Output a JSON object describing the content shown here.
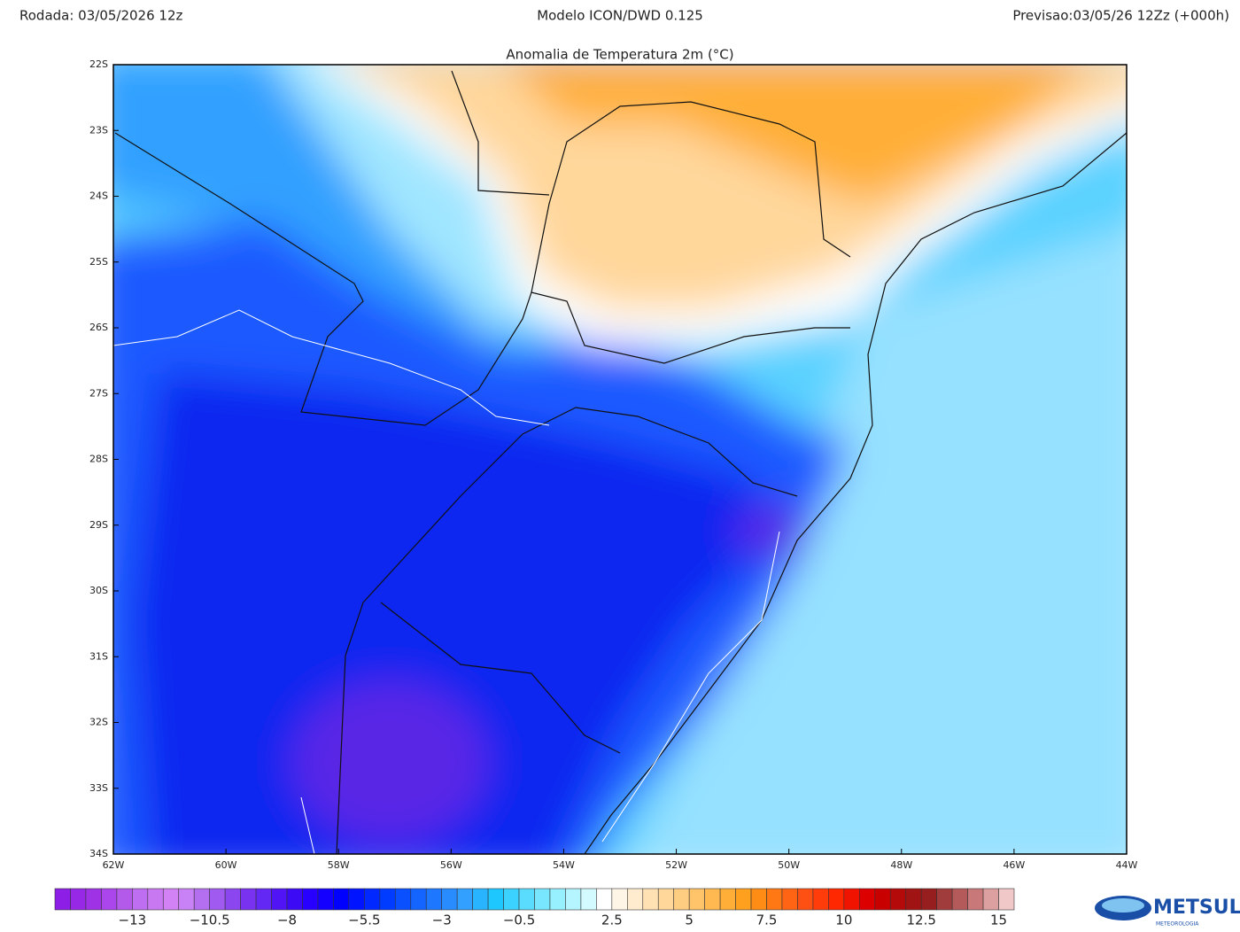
{
  "header": {
    "run": "Rodada: 03/05/2026 12z",
    "model": "Modelo ICON/DWD 0.125",
    "forecast": "Previsao:03/05/26 12Zz (+000h)"
  },
  "map": {
    "title": "Anomalia de Temperatura 2m (°C)",
    "lonlim": [
      -62,
      -44
    ],
    "latlim": [
      -22,
      -34
    ],
    "lonticks": [
      {
        "value": -62,
        "label": "62W"
      },
      {
        "value": -60,
        "label": "60W"
      },
      {
        "value": -58,
        "label": "58W"
      },
      {
        "value": -56,
        "label": "56W"
      },
      {
        "value": -54,
        "label": "54W"
      },
      {
        "value": -52,
        "label": "52W"
      },
      {
        "value": -50,
        "label": "50W"
      },
      {
        "value": -48,
        "label": "48W"
      },
      {
        "value": -46,
        "label": "46W"
      },
      {
        "value": -44,
        "label": "44W"
      }
    ],
    "latticks": [
      {
        "value": -22,
        "label": "22S"
      },
      {
        "value": -23,
        "label": "23S"
      },
      {
        "value": -24,
        "label": "24S"
      },
      {
        "value": -25,
        "label": "25S"
      },
      {
        "value": -26,
        "label": "26S"
      },
      {
        "value": -27,
        "label": "27S"
      },
      {
        "value": -28,
        "label": "28S"
      },
      {
        "value": -29,
        "label": "29S"
      },
      {
        "value": -30,
        "label": "30S"
      },
      {
        "value": -31,
        "label": "31S"
      },
      {
        "value": -32,
        "label": "32S"
      },
      {
        "value": -33,
        "label": "33S"
      },
      {
        "value": -34,
        "label": "34S"
      }
    ]
  },
  "colorbar": {
    "lim": [
      -15.5,
      15.5
    ],
    "colors": [
      "#8c1ee6",
      "#9628e6",
      "#a032e6",
      "#aa46eb",
      "#b45aeb",
      "#be6ef0",
      "#c878f0",
      "#d282f5",
      "#c882f5",
      "#b46ef0",
      "#a05af0",
      "#8c46f0",
      "#7832f0",
      "#6428f5",
      "#5014f5",
      "#3c0af5",
      "#2800ff",
      "#1400ff",
      "#0000ff",
      "#0014ff",
      "#0028ff",
      "#003cff",
      "#0a50ff",
      "#1464ff",
      "#1e78ff",
      "#288cff",
      "#32a0ff",
      "#28b4ff",
      "#1ec8ff",
      "#3cd2ff",
      "#5adcff",
      "#78e6ff",
      "#96f0ff",
      "#b4f5ff",
      "#d2faff",
      "#ffffff",
      "#fff5e6",
      "#ffebcd",
      "#ffe1b4",
      "#ffd79b",
      "#ffcd82",
      "#ffc369",
      "#ffb950",
      "#ffaf37",
      "#ffa01e",
      "#ff8c14",
      "#ff7814",
      "#ff6414",
      "#ff5014",
      "#ff3c0a",
      "#ff2800",
      "#f01400",
      "#dc0000",
      "#c80000",
      "#b40a0a",
      "#a01414",
      "#961e1e",
      "#a03c3c",
      "#b45a5a",
      "#c87878",
      "#dca0a0",
      "#f0c8c8"
    ],
    "ticks": [
      {
        "value": -13,
        "label": "−13"
      },
      {
        "value": -10.5,
        "label": "−10.5"
      },
      {
        "value": -8,
        "label": "−8"
      },
      {
        "value": -5.5,
        "label": "−5.5"
      },
      {
        "value": -3,
        "label": "−3"
      },
      {
        "value": -0.5,
        "label": "−0.5"
      },
      2.5,
      5,
      7.5,
      10,
      12.5,
      15
    ]
  },
  "logo": {
    "name": "METSUL",
    "tagline": "METEOROLOGIA"
  }
}
